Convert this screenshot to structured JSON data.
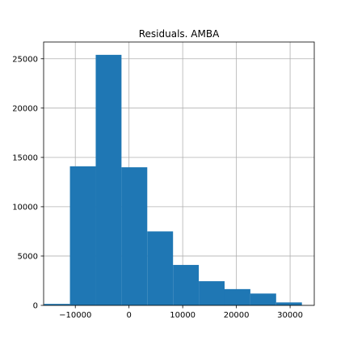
{
  "chart_data": {
    "type": "bar",
    "title": "Residuals. AMBA",
    "xlabel": "",
    "ylabel": "",
    "xlim": [
      -15900,
      34500
    ],
    "ylim": [
      0,
      26700
    ],
    "grid": true,
    "bar_color": "#1f77b4",
    "grid_color": "#b0b0b0",
    "x_ticks": [
      {
        "value": -10000,
        "label": "−10000"
      },
      {
        "value": 0,
        "label": "0"
      },
      {
        "value": 10000,
        "label": "10000"
      },
      {
        "value": 20000,
        "label": "20000"
      },
      {
        "value": 30000,
        "label": "30000"
      }
    ],
    "y_ticks": [
      {
        "value": 0,
        "label": "0"
      },
      {
        "value": 5000,
        "label": "5000"
      },
      {
        "value": 10000,
        "label": "10000"
      },
      {
        "value": 15000,
        "label": "15000"
      },
      {
        "value": 20000,
        "label": "20000"
      },
      {
        "value": 25000,
        "label": "25000"
      }
    ],
    "bins": [
      {
        "x0": -15800,
        "x1": -11000,
        "count": 150
      },
      {
        "x0": -11000,
        "x1": -6200,
        "count": 14100
      },
      {
        "x0": -6200,
        "x1": -1400,
        "count": 25400
      },
      {
        "x0": -1400,
        "x1": 3400,
        "count": 14000
      },
      {
        "x0": 3400,
        "x1": 8200,
        "count": 7500
      },
      {
        "x0": 8200,
        "x1": 13000,
        "count": 4100
      },
      {
        "x0": 13000,
        "x1": 17800,
        "count": 2450
      },
      {
        "x0": 17800,
        "x1": 22600,
        "count": 1650
      },
      {
        "x0": 22600,
        "x1": 27400,
        "count": 1200
      },
      {
        "x0": 27400,
        "x1": 32200,
        "count": 300
      }
    ]
  }
}
